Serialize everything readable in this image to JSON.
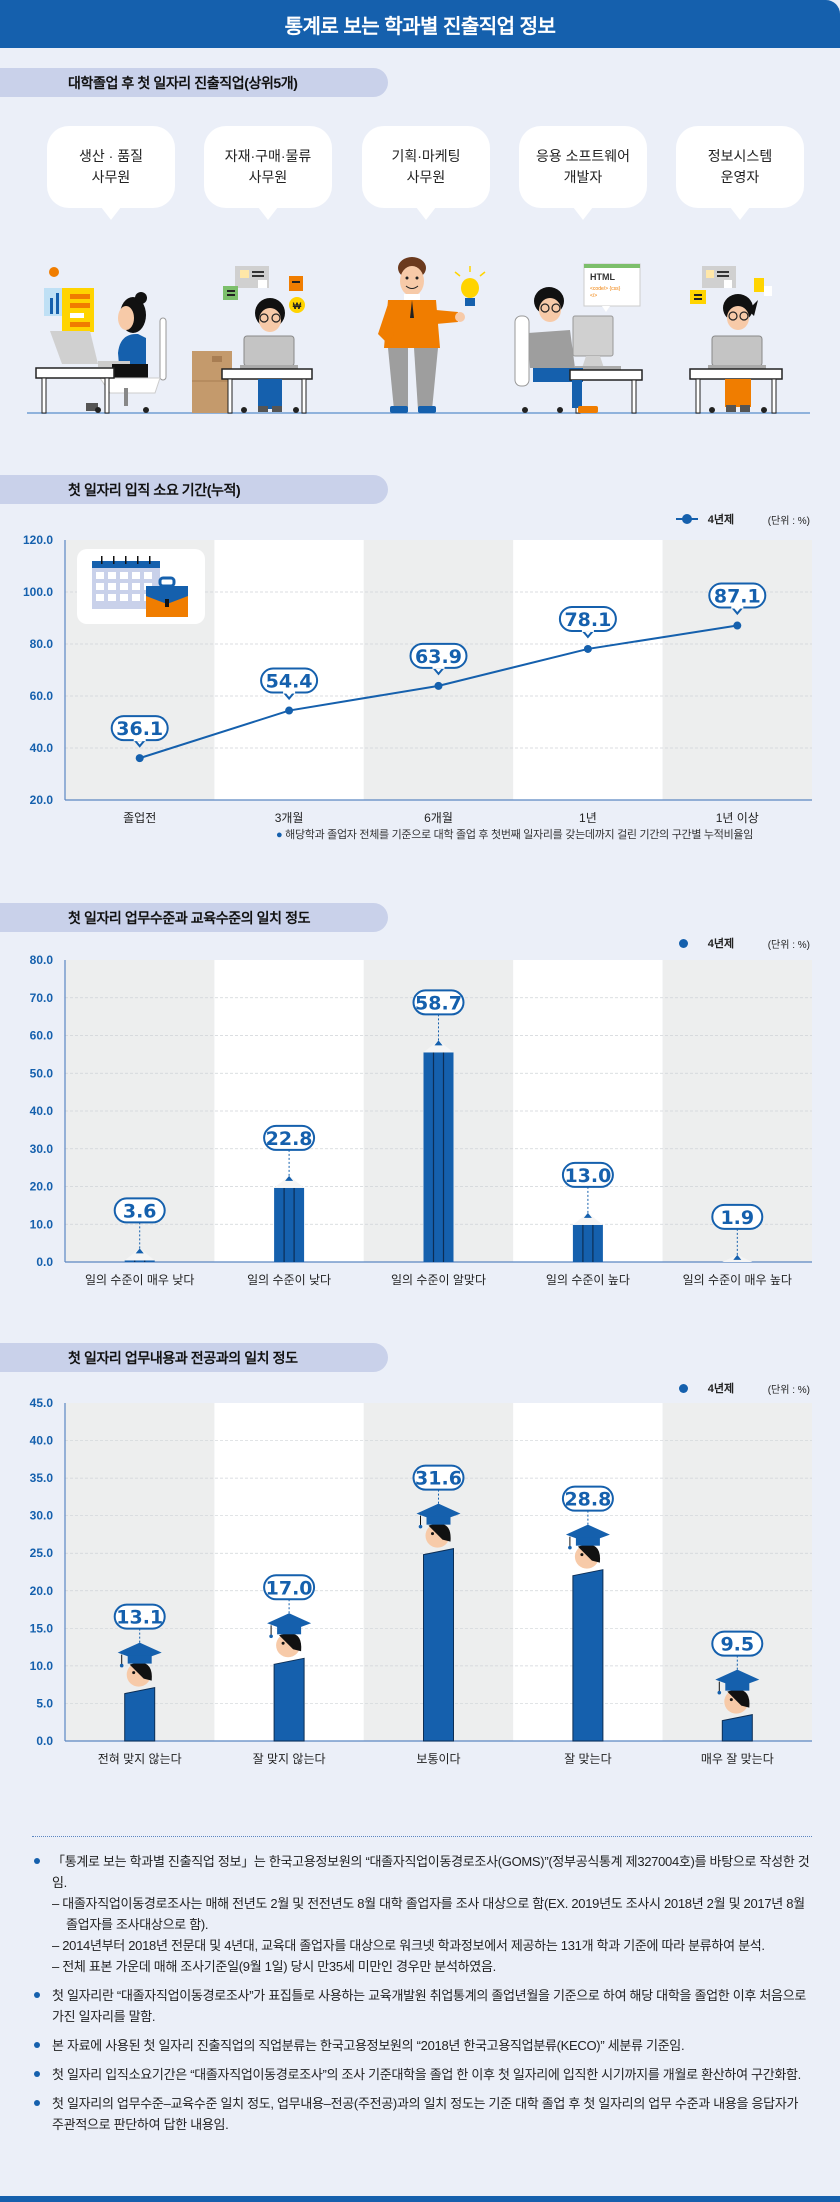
{
  "header": {
    "title": "통계로 보는 학과별 진출직업 정보"
  },
  "section1": {
    "title": "대학졸업 후 첫 일자리 진출직업(상위5개)",
    "jobs": [
      {
        "label": "생산 · 품질\n사무원"
      },
      {
        "label": "자재·구매·물류\n사무원"
      },
      {
        "label": "기획·마케팅\n사무원"
      },
      {
        "label": "응용 소프트웨어\n개발자"
      },
      {
        "label": "정보시스템\n운영자"
      }
    ],
    "illustration_code_text": [
      "HTML",
      "<code/> {css}",
      "</>"
    ]
  },
  "chart1": {
    "title": "첫 일자리 입직 소요 기간(누적)",
    "legend": "4년제",
    "unit": "(단위 : %)",
    "footnote": "해당학과 졸업자 전체를 기준으로 대학 졸업 후 첫번째 일자리를 갖는데까지 걸린 기간의 구간별 누적비율임"
  },
  "chart2": {
    "title": "첫 일자리 업무수준과 교육수준의 일치 정도",
    "legend": "4년제",
    "unit": "(단위 : %)"
  },
  "chart3": {
    "title": "첫 일자리 업무내용과 전공과의 일치 정도",
    "legend": "4년제",
    "unit": "(단위 : %)"
  },
  "chart_data": [
    {
      "type": "line",
      "title": "첫 일자리 입직 소요 기간(누적)",
      "categories": [
        "졸업전",
        "3개월",
        "6개월",
        "1년",
        "1년 이상"
      ],
      "series": [
        {
          "name": "4년제",
          "values": [
            36.1,
            54.4,
            63.9,
            78.1,
            87.1
          ]
        }
      ],
      "yticks": [
        "120.0",
        "100.0",
        "80.0",
        "60.0",
        "40.0",
        "20.0"
      ],
      "ylim": [
        20,
        120
      ],
      "xlabel": "",
      "ylabel": "",
      "grid": true,
      "legend_position": "top-right",
      "unit": "%"
    },
    {
      "type": "bar",
      "title": "첫 일자리 업무수준과 교육수준의 일치 정도",
      "categories": [
        "일의 수준이 매우 낮다",
        "일의 수준이 낮다",
        "일의 수준이 알맞다",
        "일의 수준이 높다",
        "일의 수준이 매우 높다"
      ],
      "series": [
        {
          "name": "4년제",
          "values": [
            3.6,
            22.8,
            58.7,
            13.0,
            1.9
          ]
        }
      ],
      "yticks": [
        "80.0",
        "70.0",
        "60.0",
        "50.0",
        "40.0",
        "30.0",
        "20.0",
        "10.0",
        "0.0"
      ],
      "ylim": [
        0,
        80
      ],
      "xlabel": "",
      "ylabel": "",
      "grid": true,
      "legend_position": "top-right",
      "unit": "%"
    },
    {
      "type": "bar",
      "title": "첫 일자리 업무내용과 전공과의 일치 정도",
      "categories": [
        "전혀 맞지 않는다",
        "잘 맞지 않는다",
        "보통이다",
        "잘 맞는다",
        "매우 잘 맞는다"
      ],
      "series": [
        {
          "name": "4년제",
          "values": [
            13.1,
            17.0,
            31.6,
            28.8,
            9.5
          ]
        }
      ],
      "yticks": [
        "45.0",
        "40.0",
        "35.0",
        "30.0",
        "25.0",
        "20.0",
        "15.0",
        "10.0",
        "5.0",
        "0.0"
      ],
      "ylim": [
        0,
        45
      ],
      "xlabel": "",
      "ylabel": "",
      "grid": true,
      "legend_position": "top-right",
      "unit": "%"
    }
  ],
  "colors": {
    "brand_blue": "#1560ad",
    "background": "#ebeff8",
    "pill": "#c9d1ea",
    "band_gray": "#edeeee",
    "band_white": "#ffffff",
    "orange": "#f07d00"
  },
  "notes": {
    "items": [
      {
        "text": "「통계로 보는 학과별 진출직업 정보」는 한국고용정보원의 “대졸자직업이동경로조사(GOMS)”(정부공식통계 제327004호)를 바탕으로 작성한 것임.",
        "subs": [
          "– 대졸자직업이동경로조사는 매해 전년도 2월 및 전전년도 8월 대학 졸업자를 조사 대상으로 함(EX. 2019년도 조사시 2018년 2월 및 2017년 8월 졸업자를 조사대상으로 함).",
          "– 2014년부터 2018년 전문대 및 4년대, 교육대 졸업자를 대상으로 워크넷 학과정보에서 제공하는 131개 학과 기준에 따라 분류하여 분석.",
          "– 전체 표본 가운데 매해 조사기준일(9월 1일) 당시 만35세 미만인 경우만 분석하였음."
        ]
      },
      {
        "text": "첫 일자리란 “대졸자직업이동경로조사”가 표집틀로 사용하는 교육개발원 취업통계의 졸업년월을 기준으로 하여 해당 대학을 졸업한 이후 처음으로 가진 일자리를 말함.",
        "subs": []
      },
      {
        "text": "본 자료에 사용된 첫 일자리 진출직업의 직업분류는 한국고용정보원의 “2018년 한국고용직업분류(KECO)” 세분류 기준임.",
        "subs": []
      },
      {
        "text": "첫 일자리 입직소요기간은 “대졸자직업이동경로조사”의 조사 기준대학을 졸업 한 이후 첫 일자리에 입직한 시기까지를 개월로 환산하여 구간화함.",
        "subs": []
      },
      {
        "text": "첫 일자리의 업무수준–교육수준 일치 정도, 업무내용–전공(주전공)과의 일치 정도는 기준 대학 졸업 후 첫 일자리의 업무 수준과 내용을 응답자가 주관적으로 판단하여 답한 내용임.",
        "subs": []
      }
    ]
  }
}
